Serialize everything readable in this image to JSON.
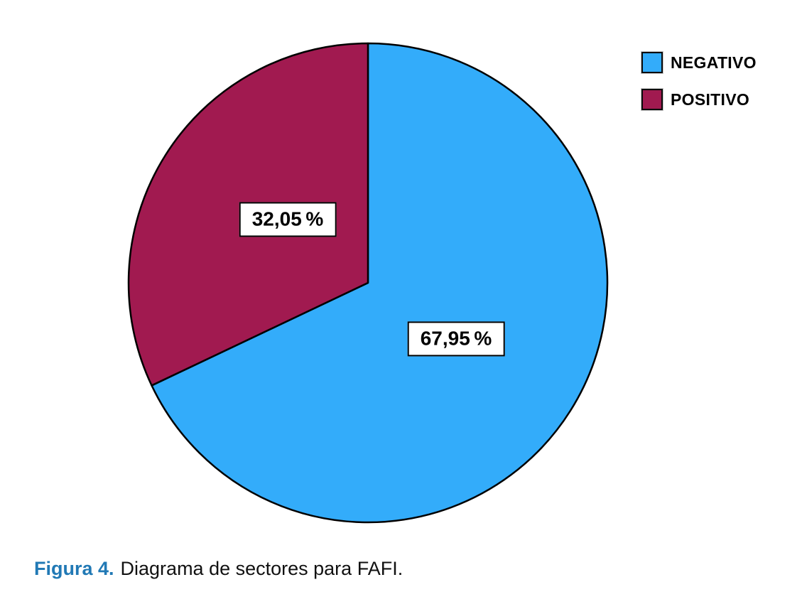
{
  "chart_data": {
    "type": "pie",
    "title": "",
    "categories": [
      "NEGATIVO",
      "POSITIVO"
    ],
    "values": [
      67.95,
      32.05
    ],
    "slices": [
      {
        "label": "NEGATIVO",
        "value": 67.95,
        "display": "67,95 %",
        "color": "#33ACFA"
      },
      {
        "label": "POSITIVO",
        "value": 32.05,
        "display": "32,05 %",
        "color": "#A11A50"
      }
    ],
    "start_angle_deg": 0,
    "direction": "clockwise",
    "stroke_color": "#000000",
    "stroke_width": 2.5,
    "legend_position": "top-right",
    "legend_entries": [
      "NEGATIVO",
      "POSITIVO"
    ]
  },
  "legend": {
    "items": [
      {
        "label": "NEGATIVO",
        "color": "#33ACFA"
      },
      {
        "label": "POSITIVO",
        "color": "#A11A50"
      }
    ]
  },
  "caption": {
    "figure_label": "Figura 4.",
    "text": "Diagrama de sectores para FAFI.",
    "label_color": "#2179B5"
  },
  "colors": {
    "background": "#FFFFFF",
    "negativo_slice": "#33ACFA",
    "positivo_slice": "#A11A50",
    "slice_stroke": "#000000",
    "caption_label_blue": "#2179B5",
    "text_black": "#000000"
  }
}
